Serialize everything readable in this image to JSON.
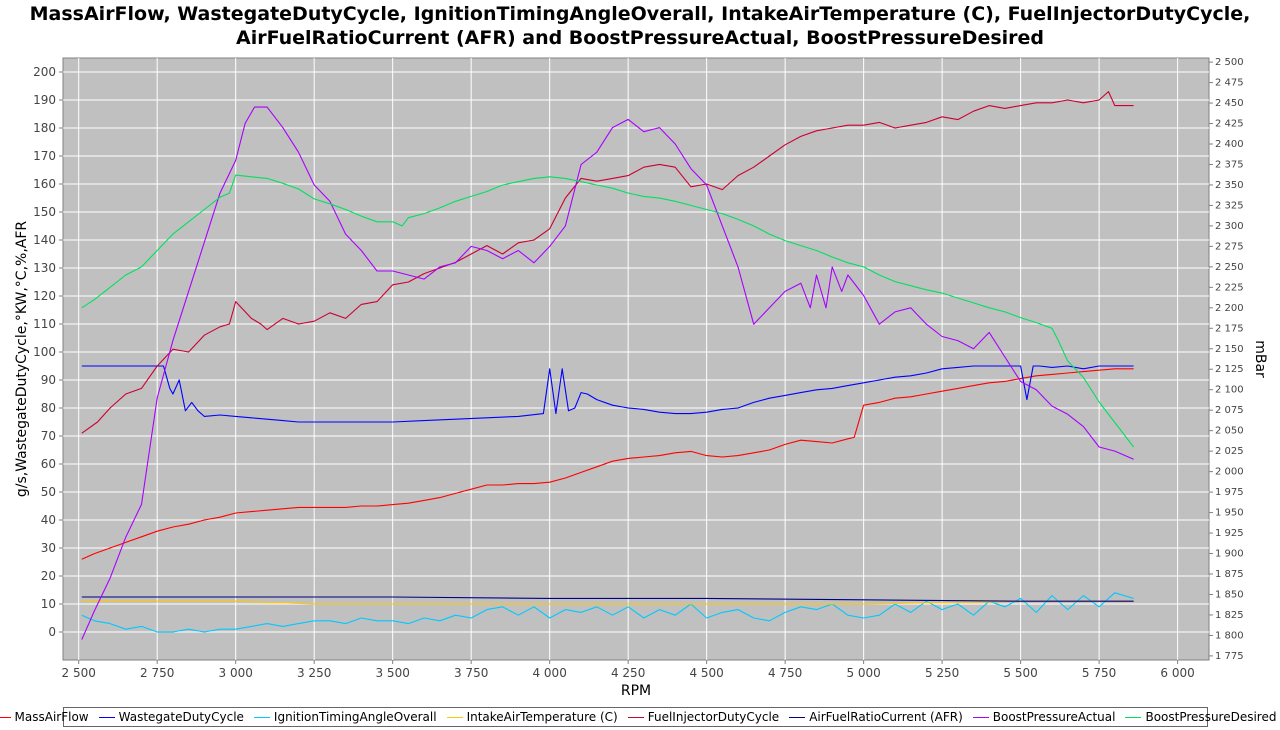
{
  "chart_data": {
    "type": "line",
    "title_line1": "MassAirFlow, WastegateDutyCycle, IgnitionTimingAngleOverall, IntakeAirTemperature (C), FuelInjectorDutyCycle,",
    "title_line2": "AirFuelRatioCurrent (AFR) and BoostPressureActual, BoostPressureDesired",
    "xlabel": "RPM",
    "ylabel": "g/s,WastegateDutyCycle,°KW,°C,%,AFR",
    "ylabel_right": "mBar",
    "xlim": [
      2450,
      6100
    ],
    "ylim": [
      -10,
      205
    ],
    "ylim_right": [
      1770,
      2505
    ],
    "x_ticks": [
      2500,
      2750,
      3000,
      3250,
      3500,
      3750,
      4000,
      4250,
      4500,
      4750,
      5000,
      5250,
      5500,
      5750,
      6000
    ],
    "x_tick_labels": [
      "2 500",
      "2 750",
      "3 000",
      "3 250",
      "3 500",
      "3 750",
      "4 000",
      "4 250",
      "4 500",
      "4 750",
      "5 000",
      "5 250",
      "5 500",
      "5 750",
      "6 000"
    ],
    "y_ticks": [
      0,
      10,
      20,
      30,
      40,
      50,
      60,
      70,
      80,
      90,
      100,
      110,
      120,
      130,
      140,
      150,
      160,
      170,
      180,
      190,
      200
    ],
    "y_tick_labels": [
      "0",
      "10",
      "20",
      "30",
      "40",
      "50",
      "60",
      "70",
      "80",
      "90",
      "100",
      "110",
      "120",
      "130",
      "140",
      "150",
      "160",
      "170",
      "180",
      "190",
      "200"
    ],
    "y_right_ticks": [
      1775,
      1800,
      1825,
      1850,
      1875,
      1900,
      1925,
      1950,
      1975,
      2000,
      2025,
      2050,
      2075,
      2100,
      2125,
      2150,
      2175,
      2200,
      2225,
      2250,
      2275,
      2300,
      2325,
      2350,
      2375,
      2400,
      2425,
      2450,
      2475,
      2500
    ],
    "y_right_tick_labels": [
      "1 775",
      "1 800",
      "1 825",
      "1 850",
      "1 875",
      "1 900",
      "1 925",
      "1 950",
      "1 975",
      "2 000",
      "2 025",
      "2 050",
      "2 075",
      "2 100",
      "2 125",
      "2 150",
      "2 175",
      "2 200",
      "2 225",
      "2 250",
      "2 275",
      "2 300",
      "2 325",
      "2 350",
      "2 375",
      "2 400",
      "2 425",
      "2 450",
      "2 475",
      "2 500"
    ],
    "grid": true,
    "legend_position": "bottom",
    "series": [
      {
        "name": "MassAirFlow",
        "color": "#ff0000",
        "axis": "left",
        "x": [
          2510,
          2550,
          2600,
          2650,
          2700,
          2750,
          2800,
          2850,
          2900,
          2950,
          3000,
          3050,
          3100,
          3150,
          3200,
          3250,
          3300,
          3350,
          3400,
          3450,
          3500,
          3550,
          3600,
          3650,
          3700,
          3750,
          3800,
          3850,
          3900,
          3950,
          4000,
          4050,
          4100,
          4150,
          4200,
          4250,
          4300,
          4350,
          4400,
          4450,
          4500,
          4550,
          4600,
          4650,
          4700,
          4750,
          4800,
          4850,
          4900,
          4950,
          4970,
          5000,
          5050,
          5100,
          5150,
          5200,
          5250,
          5300,
          5350,
          5400,
          5450,
          5500,
          5550,
          5600,
          5650,
          5700,
          5750,
          5800,
          5860
        ],
        "values": [
          26,
          28,
          30,
          32,
          34,
          36,
          37.5,
          38.5,
          40,
          41,
          42.5,
          43,
          43.5,
          44,
          44.5,
          44.5,
          44.5,
          44.5,
          45,
          45,
          45.5,
          46,
          47,
          48,
          49.5,
          51,
          52.5,
          52.5,
          53,
          53,
          53.5,
          55,
          57,
          59,
          61,
          62,
          62.5,
          63,
          64,
          64.5,
          63,
          62.5,
          63,
          64,
          65,
          67,
          68.5,
          68,
          67.5,
          69,
          69.5,
          81,
          82,
          83.5,
          84,
          85,
          86,
          87,
          88,
          89,
          89.5,
          90.5,
          91.5,
          92,
          92.5,
          93,
          93.5,
          94,
          94
        ]
      },
      {
        "name": "WastegateDutyCycle",
        "color": "#0000ff",
        "axis": "left",
        "x": [
          2510,
          2600,
          2700,
          2770,
          2790,
          2800,
          2820,
          2840,
          2860,
          2880,
          2900,
          2950,
          3000,
          3050,
          3100,
          3150,
          3200,
          3300,
          3400,
          3500,
          3600,
          3700,
          3800,
          3900,
          3980,
          4000,
          4020,
          4040,
          4060,
          4080,
          4100,
          4120,
          4150,
          4200,
          4250,
          4300,
          4350,
          4400,
          4450,
          4500,
          4550,
          4600,
          4650,
          4700,
          4750,
          4800,
          4850,
          4900,
          4950,
          5000,
          5050,
          5100,
          5150,
          5200,
          5250,
          5300,
          5350,
          5400,
          5450,
          5500,
          5520,
          5540,
          5560,
          5600,
          5650,
          5700,
          5750,
          5800,
          5860
        ],
        "values": [
          95,
          95,
          95,
          95,
          87,
          85,
          90,
          79,
          82,
          79,
          77,
          77.5,
          77,
          76.5,
          76,
          75.5,
          75,
          75,
          75,
          75,
          75.5,
          76,
          76.5,
          77,
          78,
          94,
          78,
          94,
          79,
          80,
          85.5,
          85,
          83,
          81,
          80,
          79.5,
          78.5,
          78,
          78,
          78.5,
          79.5,
          80,
          82,
          83.5,
          84.5,
          85.5,
          86.5,
          87,
          88,
          89,
          90,
          91,
          91.5,
          92.5,
          94,
          94.5,
          95,
          95,
          95,
          95,
          83,
          95,
          95,
          94.5,
          95,
          94,
          95,
          95,
          95
        ]
      },
      {
        "name": "IgnitionTimingAngleOverall",
        "color": "#00c8ff",
        "axis": "left",
        "x": [
          2510,
          2550,
          2600,
          2650,
          2700,
          2750,
          2800,
          2850,
          2900,
          2950,
          3000,
          3050,
          3100,
          3150,
          3200,
          3250,
          3300,
          3350,
          3400,
          3450,
          3500,
          3550,
          3600,
          3650,
          3700,
          3750,
          3800,
          3850,
          3900,
          3950,
          4000,
          4050,
          4100,
          4150,
          4200,
          4250,
          4300,
          4350,
          4400,
          4450,
          4500,
          4550,
          4600,
          4650,
          4700,
          4750,
          4800,
          4850,
          4900,
          4950,
          5000,
          5050,
          5100,
          5150,
          5200,
          5250,
          5300,
          5350,
          5400,
          5450,
          5500,
          5550,
          5600,
          5650,
          5700,
          5750,
          5800,
          5860
        ],
        "values": [
          6,
          4,
          3,
          1,
          2,
          0,
          0,
          1,
          0,
          1,
          1,
          2,
          3,
          2,
          3,
          4,
          4,
          3,
          5,
          4,
          4,
          3,
          5,
          4,
          6,
          5,
          8,
          9,
          6,
          9,
          5,
          8,
          7,
          9,
          6,
          9,
          5,
          8,
          6,
          10,
          5,
          7,
          8,
          5,
          4,
          7,
          9,
          8,
          10,
          6,
          5,
          6,
          10,
          7,
          11,
          8,
          10,
          6,
          11,
          9,
          12,
          7,
          13,
          8,
          13,
          9,
          14,
          12
        ]
      },
      {
        "name": "IntakeAirTemperature (C)",
        "color": "#ffc800",
        "axis": "left",
        "x": [
          2510,
          3000,
          3250,
          3500,
          4000,
          4500,
          5000,
          5500,
          5860
        ],
        "values": [
          11,
          11,
          10,
          10,
          10,
          10,
          10,
          11,
          11
        ]
      },
      {
        "name": "FuelInjectorDutyCycle",
        "color": "#cc0033",
        "axis": "left",
        "x": [
          2510,
          2560,
          2600,
          2650,
          2700,
          2750,
          2800,
          2850,
          2900,
          2950,
          2980,
          3000,
          3050,
          3080,
          3100,
          3150,
          3200,
          3250,
          3300,
          3350,
          3400,
          3450,
          3500,
          3550,
          3600,
          3650,
          3700,
          3750,
          3800,
          3850,
          3900,
          3950,
          4000,
          4050,
          4100,
          4150,
          4200,
          4250,
          4300,
          4350,
          4400,
          4450,
          4500,
          4550,
          4600,
          4650,
          4700,
          4750,
          4800,
          4850,
          4900,
          4950,
          5000,
          5050,
          5100,
          5150,
          5200,
          5250,
          5300,
          5350,
          5400,
          5450,
          5500,
          5550,
          5600,
          5650,
          5700,
          5750,
          5780,
          5800,
          5860
        ],
        "values": [
          71,
          75,
          80,
          85,
          87,
          95,
          101,
          100,
          106,
          109,
          110,
          118,
          112,
          110,
          108,
          112,
          110,
          111,
          114,
          112,
          117,
          118,
          124,
          125,
          128,
          130,
          132,
          135,
          138,
          135,
          139,
          140,
          144,
          155,
          162,
          161,
          162,
          163,
          166,
          167,
          166,
          159,
          160,
          158,
          163,
          166,
          170,
          174,
          177,
          179,
          180,
          181,
          181,
          182,
          180,
          181,
          182,
          184,
          183,
          186,
          188,
          187,
          188,
          189,
          189,
          190,
          189,
          190,
          193,
          188,
          188
        ]
      },
      {
        "name": "AirFuelRatioCurrent (AFR)",
        "color": "#000080",
        "axis": "left",
        "x": [
          2510,
          3000,
          3500,
          4000,
          4500,
          5000,
          5500,
          5860
        ],
        "values": [
          12.5,
          12.5,
          12.5,
          12,
          12,
          11.5,
          11,
          11
        ]
      },
      {
        "name": "BoostPressureActual",
        "color": "#aa00ff",
        "axis": "right",
        "x": [
          2510,
          2550,
          2600,
          2650,
          2700,
          2750,
          2800,
          2850,
          2900,
          2950,
          3000,
          3030,
          3060,
          3100,
          3150,
          3200,
          3250,
          3300,
          3350,
          3400,
          3450,
          3500,
          3550,
          3600,
          3650,
          3700,
          3750,
          3800,
          3850,
          3900,
          3950,
          4000,
          4050,
          4100,
          4150,
          4200,
          4250,
          4300,
          4350,
          4400,
          4450,
          4500,
          4550,
          4600,
          4650,
          4700,
          4750,
          4800,
          4830,
          4850,
          4880,
          4900,
          4930,
          4950,
          5000,
          5050,
          5100,
          5150,
          5200,
          5250,
          5300,
          5350,
          5400,
          5450,
          5500,
          5550,
          5600,
          5650,
          5700,
          5750,
          5800,
          5860
        ],
        "values": [
          1795,
          1830,
          1870,
          1920,
          1960,
          2090,
          2160,
          2220,
          2280,
          2340,
          2380,
          2425,
          2445,
          2445,
          2420,
          2390,
          2350,
          2330,
          2290,
          2270,
          2245,
          2245,
          2240,
          2235,
          2250,
          2255,
          2275,
          2270,
          2260,
          2270,
          2255,
          2275,
          2300,
          2375,
          2390,
          2420,
          2430,
          2415,
          2420,
          2400,
          2370,
          2350,
          2300,
          2250,
          2180,
          2200,
          2220,
          2230,
          2200,
          2240,
          2200,
          2250,
          2220,
          2240,
          2215,
          2180,
          2195,
          2200,
          2180,
          2165,
          2160,
          2150,
          2170,
          2140,
          2110,
          2100,
          2080,
          2070,
          2055,
          2030,
          2025,
          2015
        ]
      },
      {
        "name": "BoostPressureDesired",
        "color": "#00e060",
        "axis": "right",
        "x": [
          2510,
          2550,
          2600,
          2650,
          2700,
          2750,
          2800,
          2850,
          2900,
          2950,
          2980,
          3000,
          3050,
          3100,
          3150,
          3200,
          3250,
          3300,
          3350,
          3400,
          3450,
          3500,
          3530,
          3550,
          3600,
          3650,
          3700,
          3750,
          3800,
          3850,
          3900,
          3950,
          4000,
          4050,
          4100,
          4150,
          4200,
          4250,
          4300,
          4350,
          4400,
          4450,
          4500,
          4550,
          4600,
          4650,
          4700,
          4750,
          4800,
          4850,
          4900,
          4950,
          5000,
          5050,
          5100,
          5150,
          5200,
          5250,
          5300,
          5350,
          5400,
          5450,
          5500,
          5550,
          5600,
          5620,
          5650,
          5700,
          5750,
          5800,
          5860
        ],
        "values": [
          2200,
          2210,
          2225,
          2240,
          2250,
          2270,
          2290,
          2305,
          2320,
          2335,
          2340,
          2362,
          2360,
          2358,
          2352,
          2345,
          2333,
          2327,
          2320,
          2312,
          2305,
          2305,
          2300,
          2310,
          2315,
          2322,
          2330,
          2336,
          2342,
          2350,
          2354,
          2358,
          2360,
          2358,
          2354,
          2350,
          2346,
          2340,
          2336,
          2334,
          2330,
          2325,
          2320,
          2315,
          2308,
          2300,
          2290,
          2282,
          2276,
          2270,
          2262,
          2255,
          2250,
          2240,
          2232,
          2227,
          2222,
          2218,
          2212,
          2206,
          2200,
          2195,
          2188,
          2182,
          2175,
          2160,
          2135,
          2115,
          2085,
          2060,
          2030
        ]
      }
    ]
  }
}
